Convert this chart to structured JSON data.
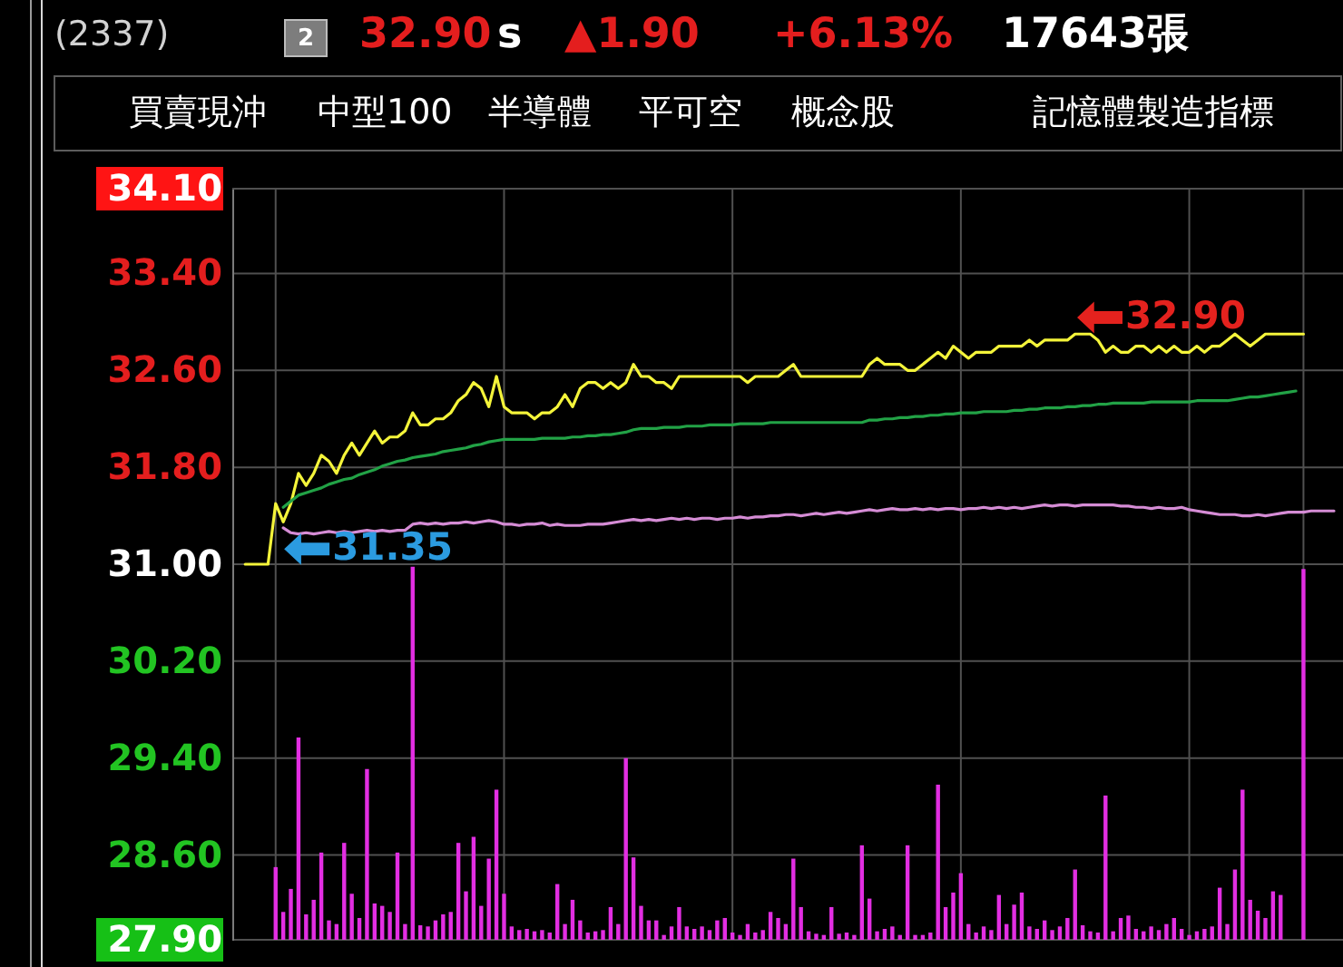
{
  "chart_data": {
    "type": "line",
    "title": "(2337)",
    "annotations": [
      "2",
      "32.90",
      "s",
      "▲1.90",
      "+6.13%",
      "17643張",
      "買賣現沖",
      "中型100",
      "半導體",
      "平可空",
      "概念股",
      "記憶體製造指標",
      "32.90",
      {
        "text": "31.35",
        "y": 31.35
      }
    ],
    "categories": [
      null,
      null,
      null,
      null,
      null,
      null,
      null,
      null,
      null,
      null,
      null,
      null,
      null,
      null,
      null,
      null,
      null,
      null,
      null,
      null,
      null,
      null,
      null,
      null,
      null,
      null,
      null,
      null,
      null,
      null,
      null,
      null,
      null,
      null,
      null,
      null,
      null,
      null,
      null,
      null,
      null,
      null,
      null,
      null,
      null,
      null,
      null,
      null,
      null,
      null,
      null,
      null,
      null,
      null,
      null,
      null,
      null,
      null,
      null,
      null,
      null,
      null,
      null,
      null,
      null,
      null,
      null,
      null,
      null,
      null,
      null,
      null,
      null,
      null,
      null,
      null,
      null,
      null,
      null,
      null,
      null,
      null,
      null,
      null,
      null,
      null,
      null,
      null,
      null,
      null,
      null,
      null,
      null,
      null,
      null,
      null,
      null,
      null,
      null,
      null,
      null,
      null,
      null,
      null,
      null,
      null,
      null,
      null,
      null,
      null,
      null,
      null,
      null,
      null,
      null,
      null,
      null,
      null,
      null,
      null,
      null,
      null,
      null,
      null,
      null,
      null,
      null,
      null,
      null,
      null,
      null,
      null,
      null,
      null,
      null,
      null,
      null,
      null,
      null,
      null,
      null,
      null,
      null,
      null
    ],
    "series": [
      {
        "color": "#f4f43a",
        "values": [
          31.0,
          31.0,
          31.0,
          31.0,
          31.5,
          31.35,
          31.5,
          31.75,
          31.65,
          31.75,
          31.9,
          31.85,
          31.75,
          31.9,
          32.0,
          31.9,
          32.0,
          32.1,
          32.0,
          32.05,
          32.05,
          32.1,
          32.25,
          32.15,
          32.15,
          32.2,
          32.2,
          32.25,
          32.35,
          32.4,
          32.5,
          32.45,
          32.3,
          32.55,
          32.3,
          32.25,
          32.25,
          32.25,
          32.2,
          32.25,
          32.25,
          32.3,
          32.4,
          32.3,
          32.45,
          32.5,
          32.5,
          32.45,
          32.5,
          32.45,
          32.5,
          32.65,
          32.55,
          32.55,
          32.5,
          32.5,
          32.45,
          32.55,
          32.55,
          32.55,
          32.55,
          32.55,
          32.55,
          32.55,
          32.55,
          32.55,
          32.5,
          32.55,
          32.55,
          32.55,
          32.55,
          32.6,
          32.65,
          32.55,
          32.55,
          32.55,
          32.55,
          32.55,
          32.55,
          32.55,
          32.55,
          32.55,
          32.65,
          32.7,
          32.65,
          32.65,
          32.65,
          32.6,
          32.6,
          32.65,
          32.7,
          32.75,
          32.7,
          32.8,
          32.75,
          32.7,
          32.75,
          32.75,
          32.75,
          32.8,
          32.8,
          32.8,
          32.8,
          32.85,
          32.8,
          32.85,
          32.85,
          32.85,
          32.85,
          32.9,
          32.9,
          32.9,
          32.85,
          32.75,
          32.8,
          32.75,
          32.75,
          32.8,
          32.8,
          32.75,
          32.8,
          32.75,
          32.8,
          32.75,
          32.75,
          32.8,
          32.75,
          32.8,
          32.8,
          32.85,
          32.9,
          32.85,
          32.8,
          32.85,
          32.9,
          32.9,
          32.9,
          32.9,
          32.9,
          32.9,
          null,
          null,
          null,
          null
        ]
      },
      {
        "color": "#22a246",
        "values": [
          null,
          null,
          null,
          null,
          null,
          31.47,
          31.52,
          31.57,
          31.59,
          31.61,
          31.63,
          31.66,
          31.68,
          31.7,
          31.71,
          31.74,
          31.76,
          31.78,
          31.81,
          31.83,
          31.85,
          31.86,
          31.88,
          31.89,
          31.9,
          31.91,
          31.93,
          31.94,
          31.95,
          31.96,
          31.98,
          31.99,
          32.01,
          32.02,
          32.03,
          32.03,
          32.03,
          32.03,
          32.03,
          32.04,
          32.04,
          32.04,
          32.04,
          32.05,
          32.05,
          32.06,
          32.06,
          32.07,
          32.07,
          32.08,
          32.09,
          32.11,
          32.12,
          32.12,
          32.12,
          32.13,
          32.13,
          32.13,
          32.14,
          32.14,
          32.14,
          32.15,
          32.15,
          32.15,
          32.15,
          32.16,
          32.16,
          32.16,
          32.16,
          32.17,
          32.17,
          32.17,
          32.17,
          32.17,
          32.17,
          32.17,
          32.17,
          32.17,
          32.17,
          32.17,
          32.17,
          32.17,
          32.19,
          32.19,
          32.2,
          32.2,
          32.21,
          32.21,
          32.22,
          32.22,
          32.23,
          32.23,
          32.24,
          32.24,
          32.25,
          32.25,
          32.25,
          32.26,
          32.26,
          32.26,
          32.26,
          32.27,
          32.27,
          32.28,
          32.28,
          32.29,
          32.29,
          32.29,
          32.3,
          32.3,
          32.31,
          32.31,
          32.32,
          32.32,
          32.33,
          32.33,
          32.33,
          32.33,
          32.33,
          32.34,
          32.34,
          32.34,
          32.34,
          32.34,
          32.34,
          32.35,
          32.35,
          32.35,
          32.35,
          32.35,
          32.36,
          32.37,
          32.38,
          32.38,
          32.39,
          32.4,
          32.41,
          32.42,
          32.43,
          null,
          null,
          null,
          null,
          null
        ]
      },
      {
        "color": "#d58cd5",
        "values": [
          null,
          null,
          null,
          null,
          null,
          31.3,
          31.26,
          31.25,
          31.26,
          31.25,
          31.26,
          31.27,
          31.26,
          31.27,
          31.26,
          31.27,
          31.28,
          31.27,
          31.28,
          31.27,
          31.28,
          31.28,
          31.33,
          31.34,
          31.33,
          31.34,
          31.33,
          31.34,
          31.34,
          31.35,
          31.34,
          31.35,
          31.36,
          31.35,
          31.33,
          31.33,
          31.32,
          31.33,
          31.33,
          31.34,
          31.32,
          31.33,
          31.32,
          31.32,
          31.32,
          31.33,
          31.33,
          31.33,
          31.34,
          31.35,
          31.36,
          31.37,
          31.36,
          31.37,
          31.36,
          31.37,
          31.38,
          31.37,
          31.38,
          31.37,
          31.38,
          31.38,
          31.37,
          31.38,
          31.38,
          31.39,
          31.38,
          31.39,
          31.39,
          31.4,
          31.4,
          31.41,
          31.41,
          31.4,
          31.41,
          31.42,
          31.41,
          31.42,
          31.43,
          31.42,
          31.43,
          31.44,
          31.45,
          31.44,
          31.45,
          31.46,
          31.45,
          31.45,
          31.46,
          31.45,
          31.46,
          31.45,
          31.46,
          31.46,
          31.45,
          31.46,
          31.46,
          31.47,
          31.46,
          31.47,
          31.46,
          31.47,
          31.46,
          31.47,
          31.48,
          31.49,
          31.48,
          31.49,
          31.49,
          31.48,
          31.49,
          31.49,
          31.49,
          31.49,
          31.49,
          31.48,
          31.48,
          31.47,
          31.47,
          31.46,
          31.47,
          31.46,
          31.46,
          31.47,
          31.45,
          31.44,
          31.43,
          31.42,
          31.41,
          31.41,
          31.41,
          31.4,
          31.4,
          31.41,
          31.4,
          31.41,
          31.42,
          31.43,
          31.43,
          31.43,
          31.44,
          31.44,
          31.44,
          31.44
        ]
      },
      {
        "type": "bar",
        "color": "#e22ee2",
        "values": [
          null,
          null,
          null,
          null,
          0.6,
          0.23,
          0.42,
          1.67,
          0.21,
          0.33,
          0.72,
          0.16,
          0.13,
          0.8,
          0.38,
          0.18,
          1.41,
          0.3,
          0.28,
          0.23,
          0.72,
          0.13,
          3.08,
          0.12,
          0.11,
          0.16,
          0.21,
          0.23,
          0.8,
          0.4,
          0.85,
          0.28,
          0.67,
          1.24,
          0.38,
          0.11,
          0.08,
          0.09,
          0.07,
          0.08,
          0.06,
          0.46,
          0.13,
          0.33,
          0.16,
          0.06,
          0.07,
          0.08,
          0.27,
          0.13,
          1.5,
          0.68,
          0.28,
          0.16,
          0.16,
          0.04,
          0.11,
          0.27,
          0.11,
          0.09,
          0.11,
          0.08,
          0.16,
          0.18,
          0.06,
          0.04,
          0.13,
          0.06,
          0.08,
          0.23,
          0.18,
          0.13,
          0.67,
          0.27,
          0.07,
          0.05,
          0.04,
          0.27,
          0.05,
          0.06,
          0.04,
          0.78,
          0.34,
          0.07,
          0.09,
          0.11,
          0.04,
          0.78,
          0.04,
          0.04,
          0.06,
          1.28,
          0.27,
          0.39,
          0.55,
          0.13,
          0.06,
          0.11,
          0.08,
          0.37,
          0.13,
          0.29,
          0.39,
          0.11,
          0.09,
          0.16,
          0.08,
          0.11,
          0.18,
          0.58,
          0.12,
          0.07,
          0.06,
          1.19,
          0.07,
          0.18,
          0.2,
          0.09,
          0.07,
          0.11,
          0.08,
          0.13,
          0.18,
          0.09,
          0.04,
          0.07,
          0.09,
          0.11,
          0.43,
          0.13,
          0.58,
          1.24,
          0.33,
          0.24,
          0.18,
          0.4,
          0.37,
          null,
          null,
          3.06,
          null,
          null,
          null,
          null
        ],
        "base": [
          null,
          null,
          null,
          null,
          27.9,
          27.9,
          27.9,
          27.9,
          27.9,
          27.9,
          27.9,
          27.9,
          27.9,
          27.9,
          27.9,
          27.9,
          27.9,
          27.9,
          27.9,
          27.9,
          27.9,
          27.9,
          27.9,
          27.9,
          27.9,
          27.9,
          27.9,
          27.9,
          27.9,
          27.9,
          27.9,
          27.9,
          27.9,
          27.9,
          27.9,
          27.9,
          27.9,
          27.9,
          27.9,
          27.9,
          27.9,
          27.9,
          27.9,
          27.9,
          27.9,
          27.9,
          27.9,
          27.9,
          27.9,
          27.9,
          27.9,
          27.9,
          27.9,
          27.9,
          27.9,
          27.9,
          27.9,
          27.9,
          27.9,
          27.9,
          27.9,
          27.9,
          27.9,
          27.9,
          27.9,
          27.9,
          27.9,
          27.9,
          27.9,
          27.9,
          27.9,
          27.9,
          27.9,
          27.9,
          27.9,
          27.9,
          27.9,
          27.9,
          27.9,
          27.9,
          27.9,
          27.9,
          27.9,
          27.9,
          27.9,
          27.9,
          27.9,
          27.9,
          27.9,
          27.9,
          27.9,
          27.9,
          27.9,
          27.9,
          27.9,
          27.9,
          27.9,
          27.9,
          27.9,
          27.9,
          27.9,
          27.9,
          27.9,
          27.9,
          27.9,
          27.9,
          27.9,
          27.9,
          27.9,
          27.9,
          27.9,
          27.9,
          27.9,
          27.9,
          27.9,
          27.9,
          27.9,
          27.9,
          27.9,
          27.9,
          27.9,
          27.9,
          27.9,
          27.9,
          27.9,
          27.9,
          27.9,
          27.9,
          27.9,
          27.9,
          27.9,
          27.9,
          27.9,
          27.9,
          27.9,
          27.9,
          27.9,
          null,
          null,
          27.9,
          null,
          null,
          null,
          null
        ]
      }
    ],
    "ylim": [
      27.9,
      34.1
    ],
    "yticks": [
      {
        "value": 34.1,
        "label": "34.10"
      },
      {
        "value": 33.4,
        "label": "33.40"
      },
      {
        "value": 32.6,
        "label": "32.60"
      },
      {
        "value": 31.8,
        "label": "31.80"
      },
      {
        "value": 31.0,
        "label": "31.00"
      },
      {
        "value": 30.2,
        "label": "30.20"
      },
      {
        "value": 29.4,
        "label": "29.40"
      },
      {
        "value": 28.6,
        "label": "28.60"
      },
      {
        "value": 27.9,
        "label": "27.90"
      }
    ],
    "grid": true
  }
}
